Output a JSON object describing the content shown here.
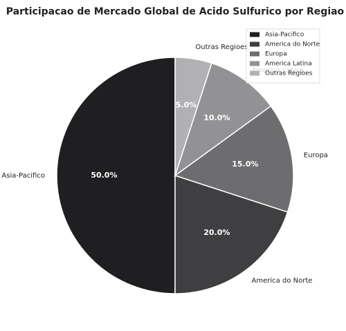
{
  "chart_data": {
    "type": "pie",
    "title": "Participacao de Mercado Global de Acido Sulfurico por Regiao",
    "categories": [
      "Asia-Pacifico",
      "America do Norte",
      "Europa",
      "America Latina",
      "Outras Regioes"
    ],
    "values": [
      50,
      20,
      15,
      10,
      5
    ],
    "value_labels": [
      "50.0%",
      "20.0%",
      "15.0%",
      "10.0%",
      "5.0%"
    ],
    "colors": [
      "#1f1f21",
      "#3f3f41",
      "#6d6d70",
      "#929295",
      "#b1b1b4"
    ],
    "legend": "upper right"
  }
}
